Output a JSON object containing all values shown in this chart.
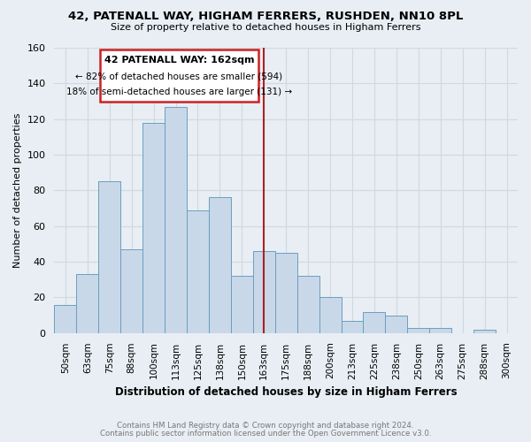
{
  "title": "42, PATENALL WAY, HIGHAM FERRERS, RUSHDEN, NN10 8PL",
  "subtitle": "Size of property relative to detached houses in Higham Ferrers",
  "xlabel": "Distribution of detached houses by size in Higham Ferrers",
  "ylabel": "Number of detached properties",
  "footer_line1": "Contains HM Land Registry data © Crown copyright and database right 2024.",
  "footer_line2": "Contains public sector information licensed under the Open Government Licence v3.0.",
  "bin_labels": [
    "50sqm",
    "63sqm",
    "75sqm",
    "88sqm",
    "100sqm",
    "113sqm",
    "125sqm",
    "138sqm",
    "150sqm",
    "163sqm",
    "175sqm",
    "188sqm",
    "200sqm",
    "213sqm",
    "225sqm",
    "238sqm",
    "250sqm",
    "263sqm",
    "275sqm",
    "288sqm",
    "300sqm"
  ],
  "bar_heights": [
    16,
    33,
    85,
    47,
    118,
    127,
    69,
    76,
    32,
    46,
    45,
    32,
    20,
    7,
    12,
    10,
    3,
    3,
    0,
    2,
    0
  ],
  "bar_color": "#cddaе8",
  "bar_color_hex": "#c9d8e8",
  "bar_edge_color": "#6a9ec0",
  "vline_x_index": 9.0,
  "vline_color": "#aa2222",
  "annotation_text_line1": "42 PATENALL WAY: 162sqm",
  "annotation_text_line2": "← 82% of detached houses are smaller (594)",
  "annotation_text_line3": "18% of semi-detached houses are larger (131) →",
  "annotation_box_color": "#cc2222",
  "annotation_bg": "#ffffff",
  "ylim": [
    0,
    160
  ],
  "yticks": [
    0,
    20,
    40,
    60,
    80,
    100,
    120,
    140,
    160
  ],
  "grid_color": "#d0d8e0",
  "plot_bg_color": "#e8eef4",
  "fig_bg_color": "#e8eef4"
}
